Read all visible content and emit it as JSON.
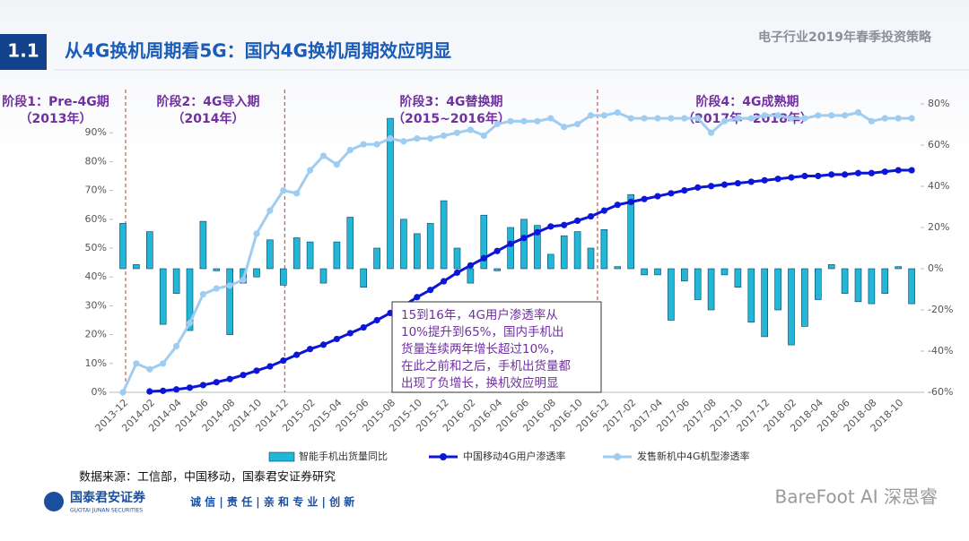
{
  "header": {
    "section": "1.1",
    "title": "从4G换机周期看5G：国内4G换机周期效应明显",
    "report": "电子行业2019年春季投资策略"
  },
  "chart_data": {
    "type": "combo",
    "stages": [
      {
        "label": "阶段1：Pre-4G期",
        "period": "（2013年）"
      },
      {
        "label": "阶段2：4G导入期",
        "period": "（2014年）"
      },
      {
        "label": "阶段3：4G替换期",
        "period": "（2015~2016年）"
      },
      {
        "label": "阶段4：4G成熟期",
        "period": "（2017年~2018年）"
      }
    ],
    "annotation": [
      "15到16年，4G用户渗透率从",
      "10%提升到65%，国内手机出",
      "货量连续两年增长超过10%，",
      "在此之前和之后，手机出货量都",
      "出现了负增长，换机效应明显"
    ],
    "categories": [
      "2013-12",
      null,
      "2014-02",
      null,
      "2014-04",
      null,
      "2014-06",
      null,
      "2014-08",
      null,
      "2014-10",
      null,
      "2014-12",
      null,
      "2015-02",
      null,
      "2015-04",
      null,
      "2015-06",
      null,
      "2015-08",
      null,
      "2015-10",
      null,
      "2015-12",
      null,
      "2016-02",
      null,
      "2016-04",
      null,
      "2016-06",
      null,
      "2016-08",
      null,
      "2016-10",
      null,
      "2016-12",
      null,
      "2017-02",
      null,
      "2017-04",
      null,
      "2017-06",
      null,
      "2017-08",
      null,
      "2017-10",
      null,
      "2017-12",
      null,
      "2018-02",
      null,
      "2018-04",
      null,
      "2018-06",
      null,
      "2018-08",
      null,
      "2018-10",
      null
    ],
    "series": [
      {
        "name": "智能手机出货量同比",
        "type": "bar",
        "axis": "y2",
        "color": "#22b7d6",
        "values": [
          22,
          2,
          18,
          -27,
          -12,
          -30,
          23,
          -1,
          -32,
          -7,
          -4,
          14,
          -8,
          15,
          13,
          -7,
          13,
          25,
          -9,
          10,
          73,
          24,
          17,
          22,
          33,
          10,
          -7,
          26,
          -1,
          20,
          24,
          21,
          7,
          16,
          18,
          10,
          19,
          1,
          36,
          -3,
          -3,
          -25,
          -6,
          -15,
          -20,
          -3,
          -9,
          -26,
          -33,
          -20,
          -37,
          -28,
          -15,
          2,
          -12,
          -16,
          -17,
          -12,
          1,
          -17
        ]
      },
      {
        "name": "中国移动4G用户渗透率",
        "type": "line",
        "color": "#0b16d6",
        "values": [
          null,
          null,
          0.3,
          0.5,
          1,
          1.6,
          2.5,
          3.5,
          4.6,
          6,
          7.5,
          9,
          11,
          13,
          15,
          16.5,
          18.5,
          20.5,
          22.5,
          25,
          27.5,
          30,
          33,
          35.5,
          38.5,
          41.5,
          44,
          46.5,
          49,
          51.5,
          53.5,
          55.5,
          57.5,
          58,
          59.5,
          61,
          63,
          65,
          66,
          67,
          68,
          69,
          70,
          71,
          71.5,
          72,
          72.5,
          73,
          73.5,
          74,
          74.5,
          75,
          75,
          75.5,
          75.5,
          76,
          76,
          76.5,
          77,
          77
        ]
      },
      {
        "name": "发售新机中4G机型渗透率",
        "type": "line",
        "color": "#9fcdf2",
        "values": [
          0,
          10,
          8,
          10,
          16,
          24,
          34,
          36,
          37,
          39,
          55,
          63,
          70,
          69,
          77,
          82,
          79,
          84,
          86,
          86,
          88,
          87,
          88,
          88,
          89,
          90,
          91,
          89,
          93,
          94,
          94,
          94,
          95,
          92,
          93,
          96,
          96,
          97,
          95,
          95,
          95,
          95,
          95,
          95,
          90,
          94,
          95,
          95,
          96,
          96,
          95,
          95,
          96,
          96,
          96,
          97,
          94,
          95,
          95,
          95
        ]
      }
    ],
    "ylim": [
      0,
      100
    ],
    "yticks": [
      {
        "value": 0,
        "label": "0%"
      },
      {
        "value": 10,
        "label": "10%"
      },
      {
        "value": 20,
        "label": "20%"
      },
      {
        "value": 30,
        "label": "30%"
      },
      {
        "value": 40,
        "label": "40%"
      },
      {
        "value": 50,
        "label": "50%"
      },
      {
        "value": 60,
        "label": "60%"
      },
      {
        "value": 70,
        "label": "70%"
      },
      {
        "value": 80,
        "label": "80%"
      },
      {
        "value": 90,
        "label": "90%"
      }
    ],
    "y2lim": [
      -60,
      80
    ],
    "y2ticks": [
      {
        "value": -60,
        "label": "-60%"
      },
      {
        "value": -40,
        "label": "-40%"
      },
      {
        "value": -20,
        "label": "-20%"
      },
      {
        "value": 0,
        "label": "0%"
      },
      {
        "value": 20,
        "label": "20%"
      },
      {
        "value": 40,
        "label": "40%"
      },
      {
        "value": 60,
        "label": "60%"
      },
      {
        "value": 80,
        "label": "80%"
      }
    ],
    "source": "数据来源：工信部，中国移动，国泰君安证券研究"
  },
  "footer": {
    "logo": "国泰君安证券",
    "logo_en": "GUOTAI JUNAN SECURITIES",
    "slogan": "诚 信 | 责 任 | 亲 和   专 业 | 创 新",
    "watermark": "BareFoot AI 深思睿"
  }
}
